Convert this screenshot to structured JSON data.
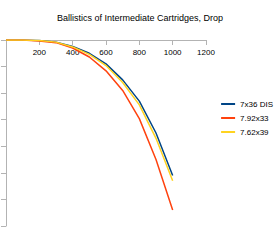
{
  "chart_data": {
    "type": "line",
    "title": "Ballistics of Intermediate Cartridges, Drop",
    "x": [
      0,
      100,
      200,
      300,
      400,
      500,
      600,
      700,
      800,
      900,
      1000
    ],
    "series": [
      {
        "name": "7x36 DIS",
        "color": "#004586",
        "values": [
          0,
          0,
          -1,
          -4,
          -12,
          -25,
          -45,
          -75,
          -115,
          -175,
          -255
        ]
      },
      {
        "name": "7.92x33",
        "color": "#ff420e",
        "values": [
          0,
          0,
          -2,
          -5,
          -15,
          -32,
          -58,
          -95,
          -148,
          -225,
          -320
        ]
      },
      {
        "name": "7.62x39",
        "color": "#ffd320",
        "values": [
          0,
          0,
          -1,
          -4,
          -13,
          -27,
          -48,
          -80,
          -122,
          -185,
          -265
        ]
      }
    ],
    "xlim": [
      0,
      1200
    ],
    "xticks": [
      200,
      400,
      600,
      800,
      1000,
      1200
    ],
    "ylim": [
      -350,
      0
    ],
    "yticks": [
      -350,
      -300,
      -250,
      -200,
      -150,
      -100,
      -50,
      0
    ],
    "grid": false,
    "legend": "right",
    "tick_labels": "x",
    "marker": "none",
    "line_style": "solid"
  }
}
